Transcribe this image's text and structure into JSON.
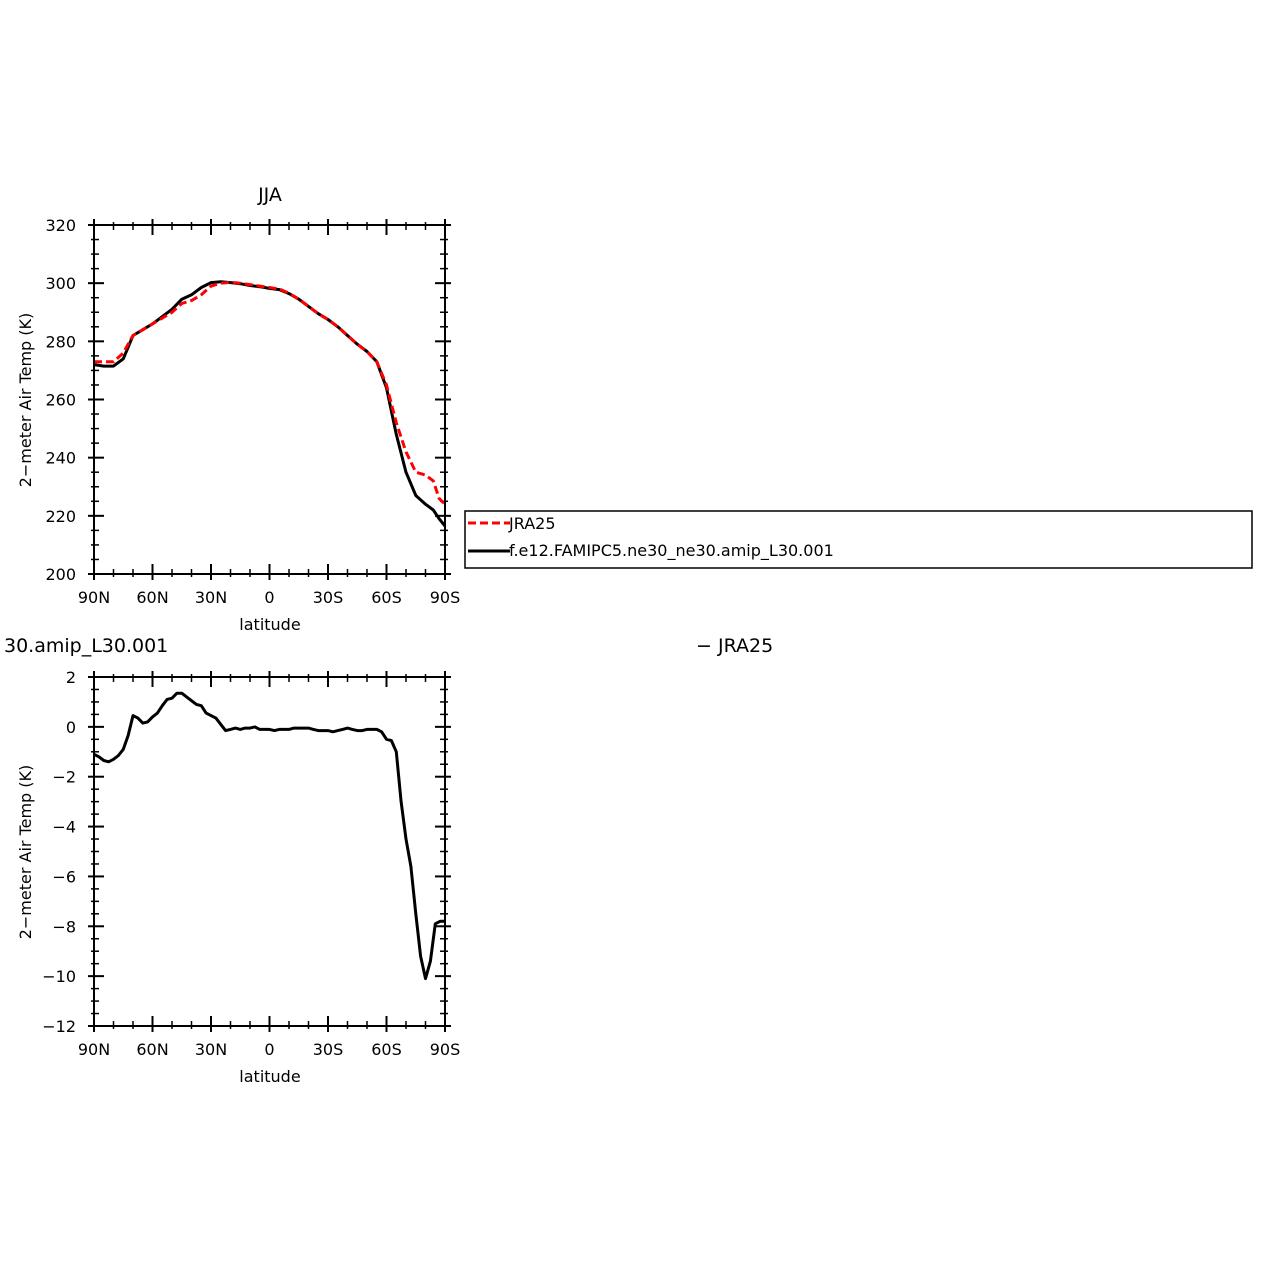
{
  "chart_data": [
    {
      "type": "line",
      "title": "JJA",
      "xlabel": "latitude",
      "ylabel": "2−meter Air Temp (K)",
      "xlim": [
        90,
        -90
      ],
      "ylim": [
        200,
        320
      ],
      "xticks": [
        90,
        60,
        30,
        0,
        -30,
        -60,
        -90
      ],
      "xtick_labels": [
        "90N",
        "60N",
        "30N",
        "0",
        "30S",
        "60S",
        "90S"
      ],
      "yticks": [
        200,
        220,
        240,
        260,
        280,
        300,
        320
      ],
      "ytick_labels": [
        "200",
        "220",
        "240",
        "260",
        "280",
        "300",
        "320"
      ],
      "grid": false,
      "legend_position": "right",
      "series": [
        {
          "name": "JRA25",
          "color": "#ff0000",
          "dash": "dashed",
          "x": [
            90,
            85,
            80,
            75,
            70,
            65,
            60,
            55,
            50,
            45,
            40,
            35,
            30,
            25,
            20,
            15,
            10,
            5,
            0,
            -5,
            -10,
            -15,
            -20,
            -25,
            -30,
            -35,
            -40,
            -45,
            -50,
            -55,
            -60,
            -65,
            -70,
            -75,
            -80,
            -84,
            -87,
            -90
          ],
          "y": [
            273,
            273,
            273,
            276,
            282,
            284,
            286,
            288,
            290,
            293,
            294,
            296,
            299,
            300,
            300.3,
            300,
            299.5,
            299,
            298.5,
            298,
            296.5,
            294.5,
            292,
            289.5,
            287.5,
            285,
            282,
            279,
            276.5,
            273,
            265,
            252,
            242,
            235,
            234,
            232,
            226,
            224
          ]
        },
        {
          "name": "f.e12.FAMIPC5.ne30_ne30.amip_L30.001",
          "color": "#000000",
          "dash": "solid",
          "x": [
            90,
            85,
            80,
            75,
            70,
            65,
            60,
            55,
            50,
            45,
            40,
            35,
            30,
            25,
            20,
            15,
            10,
            5,
            0,
            -5,
            -10,
            -15,
            -20,
            -25,
            -30,
            -35,
            -40,
            -45,
            -50,
            -55,
            -60,
            -65,
            -70,
            -75,
            -80,
            -84,
            -87,
            -90
          ],
          "y": [
            272,
            271.5,
            271.5,
            274,
            282,
            284,
            286,
            288.5,
            291,
            294.5,
            296,
            298.5,
            300.2,
            300.5,
            300.2,
            299.8,
            299.2,
            298.8,
            298.2,
            297.8,
            296.4,
            294.5,
            292,
            289.5,
            287.5,
            285,
            282,
            279,
            276.5,
            273,
            264,
            248,
            235,
            227,
            224,
            222,
            219,
            216.5
          ]
        }
      ]
    },
    {
      "type": "line",
      "title": "30.amip_L30.001",
      "title_right": "− JRA25",
      "xlabel": "latitude",
      "ylabel": "2−meter Air Temp (K)",
      "xlim": [
        90,
        -90
      ],
      "ylim": [
        -12,
        2
      ],
      "xticks": [
        90,
        60,
        30,
        0,
        -30,
        -60,
        -90
      ],
      "xtick_labels": [
        "90N",
        "60N",
        "30N",
        "0",
        "30S",
        "60S",
        "90S"
      ],
      "yticks": [
        -12,
        -10,
        -8,
        -6,
        -4,
        -2,
        0,
        2
      ],
      "ytick_labels": [
        "−12",
        "−10",
        "−8",
        "−6",
        "−4",
        "−2",
        "0",
        "2"
      ],
      "grid": false,
      "series": [
        {
          "color": "#000000",
          "dash": "solid",
          "x": [
            90,
            87.5,
            85,
            82.5,
            80,
            77.5,
            75,
            72.5,
            70,
            67.5,
            65,
            62.5,
            60,
            57.5,
            55,
            52.5,
            50,
            47.5,
            45,
            42.5,
            40,
            37.5,
            35,
            32.5,
            30,
            27.5,
            25,
            22.5,
            20,
            17.5,
            15,
            12.5,
            10,
            7.5,
            5,
            2.5,
            0,
            -2.5,
            -5,
            -7.5,
            -10,
            -12.5,
            -15,
            -17.5,
            -20,
            -22.5,
            -25,
            -27.5,
            -30,
            -32.5,
            -35,
            -37.5,
            -40,
            -42.5,
            -45,
            -47.5,
            -50,
            -52.5,
            -55,
            -57.5,
            -60,
            -62.5,
            -65,
            -67.5,
            -70,
            -72.5,
            -75,
            -77.5,
            -80,
            -82.5,
            -85,
            -87.5,
            -90
          ],
          "y": [
            -1.1,
            -1.2,
            -1.35,
            -1.4,
            -1.3,
            -1.15,
            -0.9,
            -0.35,
            0.45,
            0.35,
            0.15,
            0.2,
            0.4,
            0.55,
            0.85,
            1.1,
            1.15,
            1.35,
            1.35,
            1.2,
            1.05,
            0.9,
            0.85,
            0.55,
            0.45,
            0.35,
            0.1,
            -0.15,
            -0.1,
            -0.05,
            -0.1,
            -0.05,
            -0.05,
            0.0,
            -0.1,
            -0.1,
            -0.1,
            -0.15,
            -0.1,
            -0.1,
            -0.1,
            -0.05,
            -0.05,
            -0.05,
            -0.05,
            -0.1,
            -0.15,
            -0.15,
            -0.15,
            -0.2,
            -0.15,
            -0.1,
            -0.05,
            -0.1,
            -0.15,
            -0.15,
            -0.1,
            -0.1,
            -0.1,
            -0.2,
            -0.5,
            -0.55,
            -1.0,
            -3.0,
            -4.5,
            -5.6,
            -7.5,
            -9.2,
            -10.1,
            -9.4,
            -7.9,
            -7.8,
            -7.8
          ]
        }
      ]
    }
  ],
  "legend": {
    "entries": [
      {
        "label": "JRA25",
        "color": "#ff0000",
        "dash": "dashed"
      },
      {
        "label": "f.e12.FAMIPC5.ne30_ne30.amip_L30.001",
        "color": "#000000",
        "dash": "solid"
      }
    ]
  }
}
